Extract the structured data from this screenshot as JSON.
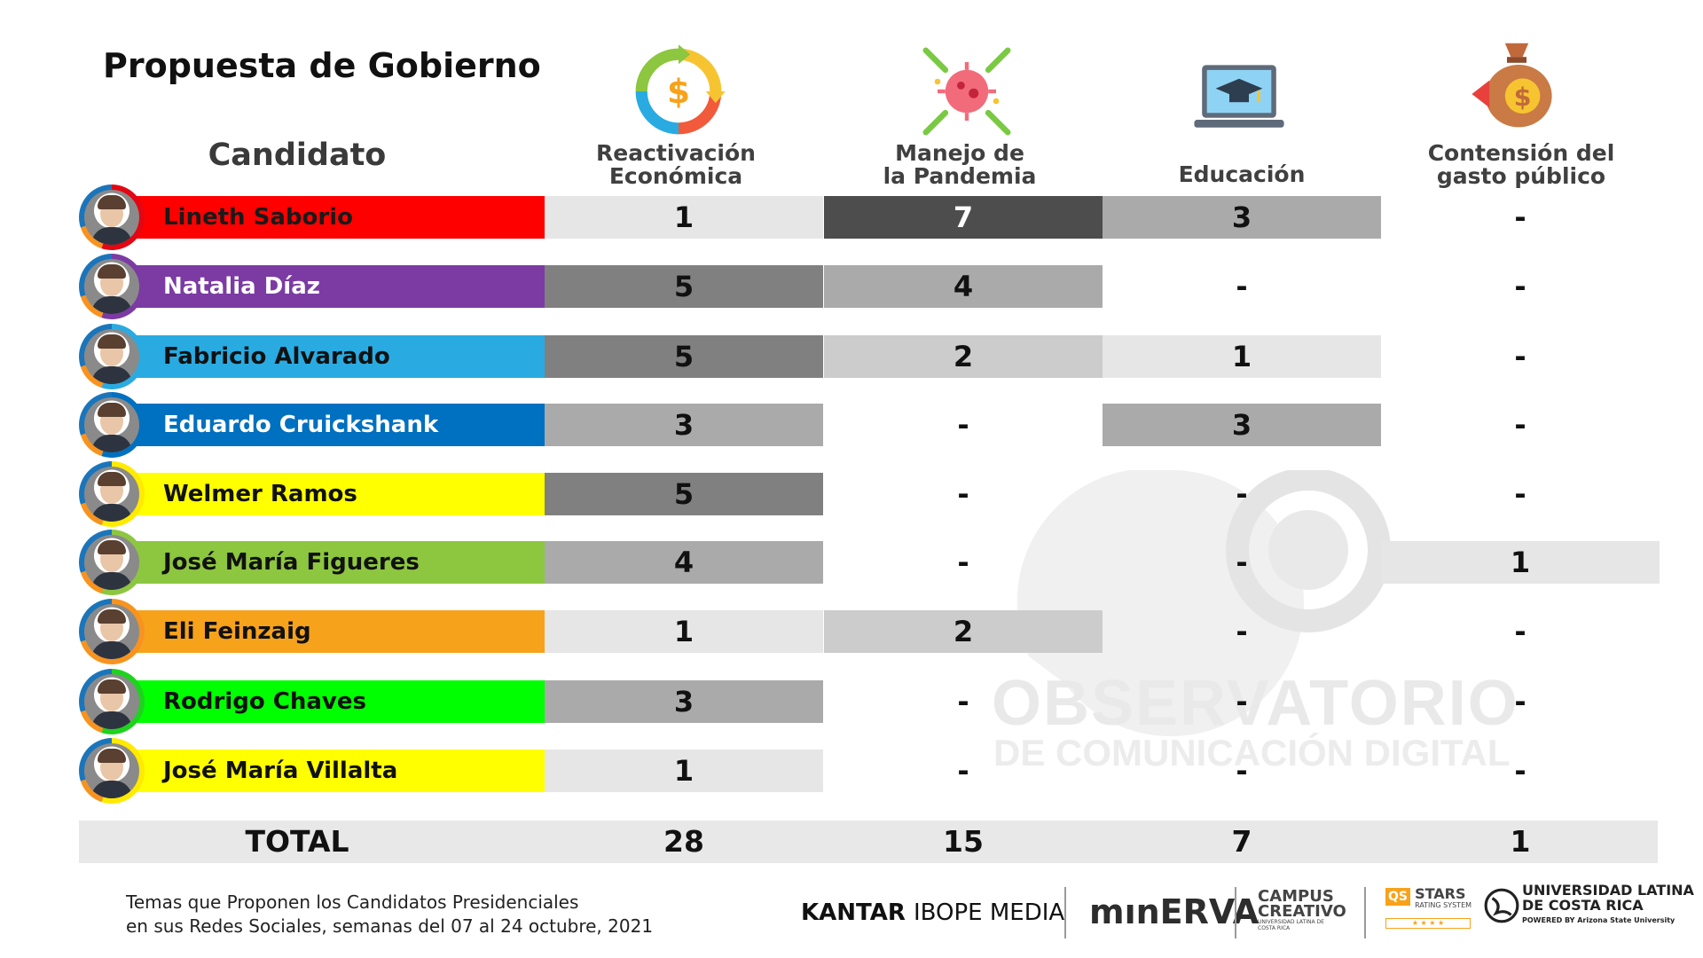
{
  "title": "Propuesta de Gobierno",
  "candidate_header": "Candidato",
  "columns": [
    {
      "label_line1": "Reactivación",
      "label_line2": "Económica",
      "icon": "economy-cycle-icon"
    },
    {
      "label_line1": "Manejo de",
      "label_line2": "la Pandemia",
      "icon": "virus-icon"
    },
    {
      "label_line1": "Educación",
      "label_line2": "",
      "icon": "laptop-graduation-icon"
    },
    {
      "label_line1": "Contensión del",
      "label_line2": "gasto público",
      "icon": "money-bag-icon"
    }
  ],
  "chart_data": {
    "type": "table",
    "title": "Propuesta de Gobierno",
    "columns": [
      "Reactivación Económica",
      "Manejo de la Pandemia",
      "Educación",
      "Contensión del gasto público"
    ],
    "rows": [
      {
        "candidate": "Lineth Saborio",
        "color": "#ff0000",
        "ring": "#e30613",
        "values": [
          "1",
          "7",
          "3",
          "-"
        ]
      },
      {
        "candidate": "Natalia Díaz",
        "color": "#7b3ba3",
        "ring": "#7b3ba3",
        "values": [
          "5",
          "4",
          "-",
          "-"
        ]
      },
      {
        "candidate": "Fabricio Alvarado",
        "color": "#29abe2",
        "ring": "#29abe2",
        "values": [
          "5",
          "2",
          "1",
          "-"
        ]
      },
      {
        "candidate": "Eduardo Cruickshank",
        "color": "#0070c0",
        "ring": "#0070c0",
        "values": [
          "3",
          "-",
          "3",
          "-"
        ]
      },
      {
        "candidate": "Welmer Ramos",
        "color": "#ffff00",
        "ring": "#ffea00",
        "values": [
          "5",
          "-",
          "-",
          "-"
        ]
      },
      {
        "candidate": "José María Figueres",
        "color": "#8dc63f",
        "ring": "#8dc63f",
        "values": [
          "4",
          "-",
          "-",
          "1"
        ]
      },
      {
        "candidate": "Eli Feinzaig",
        "color": "#f7a21b",
        "ring": "#f7931e",
        "values": [
          "1",
          "2",
          "-",
          "-"
        ]
      },
      {
        "candidate": "Rodrigo Chaves",
        "color": "#00ff00",
        "ring": "#1fd21f",
        "values": [
          "3",
          "-",
          "-",
          "-"
        ]
      },
      {
        "candidate": "José María Villalta",
        "color": "#ffff00",
        "ring": "#ffea00",
        "values": [
          "1",
          "-",
          "-",
          "-"
        ]
      }
    ],
    "totals": {
      "label": "TOTAL",
      "values": [
        "28",
        "15",
        "7",
        "1"
      ]
    }
  },
  "footnote": {
    "line1": "Temas que Proponen los Candidatos Presidenciales",
    "line2": "en sus Redes Sociales, semanas del 07 al 24 octubre, 2021"
  },
  "logos": {
    "kantar": "KANTAR",
    "ibope": "IBOPE MEDIA",
    "minerva": "mınERVA",
    "campus1": "CAMPUS",
    "campus2": "CREATIVO",
    "campus_small": "UNIVERSIDAD LATINA DE COSTA RICA",
    "qs": "QS",
    "stars": "STARS",
    "stars_small": "RATING SYSTEM",
    "ulatina1": "UNIVERSIDAD LATINA",
    "ulatina2": "DE COSTA RICA",
    "ulatina_small": "POWERED BY Arizona State University"
  },
  "watermark": {
    "line1": "OBSERVATORIO",
    "line2": "DE COMUNICACIÓN DIGITAL"
  }
}
